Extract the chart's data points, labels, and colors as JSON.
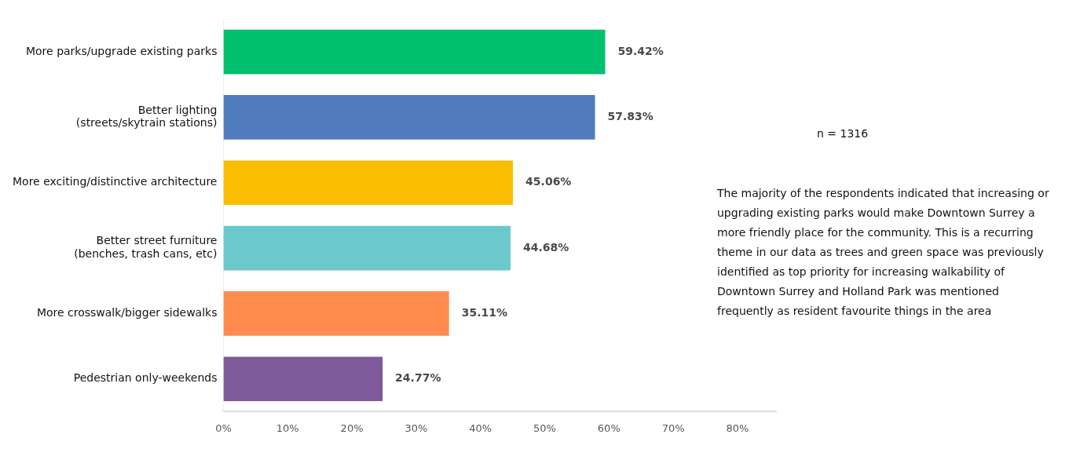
{
  "chart_data": {
    "type": "bar",
    "orientation": "horizontal",
    "categories": [
      "More parks/upgrade existing parks",
      "Better lighting\n(streets/skytrain stations)",
      "More exciting/distinctive architecture",
      "Better street furniture\n(benches, trash cans, etc)",
      "More crosswalk/bigger sidewalks",
      "Pedestrian only-weekends"
    ],
    "values": [
      59.42,
      57.83,
      45.06,
      44.68,
      35.11,
      24.77
    ],
    "colors": [
      "#00bf6f",
      "#507cbf",
      "#f9be00",
      "#6bc8cd",
      "#ff8b4f",
      "#7f5a9a"
    ],
    "value_labels": [
      "59.42%",
      "57.83%",
      "45.06%",
      "44.68%",
      "35.11%",
      "24.77%"
    ],
    "xlim": [
      0,
      86
    ],
    "xticks": [
      {
        "value": 0,
        "label": "0%"
      },
      {
        "value": 10,
        "label": "10%"
      },
      {
        "value": 20,
        "label": "20%"
      },
      {
        "value": 30,
        "label": "30%"
      },
      {
        "value": 40,
        "label": "40%"
      },
      {
        "value": 50,
        "label": "50%"
      },
      {
        "value": 60,
        "label": "60%"
      },
      {
        "value": 70,
        "label": "70%"
      },
      {
        "value": 80,
        "label": "80%"
      }
    ],
    "grid": false,
    "legend": false,
    "annotations": [
      "n = 1316",
      "The majority of the respondents indicated that increasing or upgrading existing parks would make Downtown Surrey a more friendly place for the community. This is a recurring theme in our data as trees and green space was previously identified as top priority for increasing walkability of Downtown Surrey and Holland Park was mentioned frequently as resident favourite things in the area"
    ]
  }
}
